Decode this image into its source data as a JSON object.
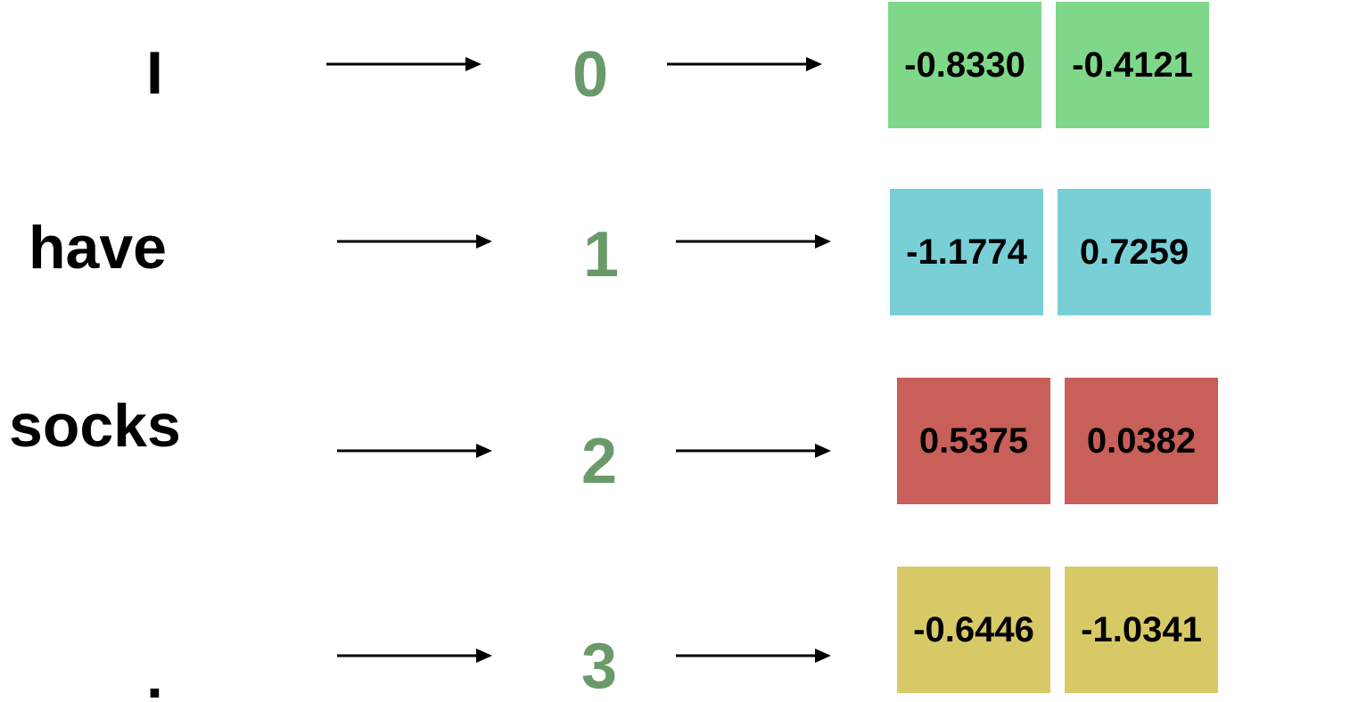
{
  "colors": {
    "index": "#6a9a6a",
    "row0": "#7fd889",
    "row1": "#78d0d6",
    "row2": "#c85f58",
    "row3": "#d7ca66",
    "arrow": "#000000"
  },
  "rows": [
    {
      "token": "I",
      "index": "0",
      "embedding": [
        "-0.8330",
        "-0.4121"
      ]
    },
    {
      "token": "have",
      "index": "1",
      "embedding": [
        "-1.1774",
        "0.7259"
      ]
    },
    {
      "token": "socks",
      "index": "2",
      "embedding": [
        "0.5375",
        "0.0382"
      ]
    },
    {
      "token": ".",
      "index": "3",
      "embedding": [
        "-0.6446",
        "-1.0341"
      ]
    }
  ]
}
